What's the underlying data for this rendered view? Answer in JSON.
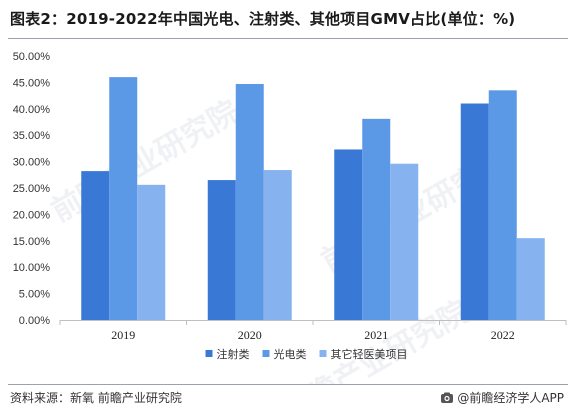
{
  "title": "图表2：2019-2022年中国光电、注射类、其他项目GMV占比(单位：%)",
  "source": "资料来源：新氧 前瞻产业研究院",
  "brand": "@前瞻经济学人APP",
  "brand_icon": "camera-logo-icon",
  "watermark": "前瞻产业研究院",
  "colors": {
    "series": [
      "#3a78d6",
      "#5b98e6",
      "#86b3ef"
    ],
    "axis": "#bfbfbf"
  },
  "chart_data": {
    "type": "bar",
    "title": "",
    "xlabel": "",
    "ylabel": "",
    "categories": [
      "2019",
      "2020",
      "2021",
      "2022"
    ],
    "series": [
      {
        "name": "注射类",
        "values": [
          28.2,
          26.5,
          32.3,
          41.0
        ]
      },
      {
        "name": "光电类",
        "values": [
          46.0,
          44.7,
          38.1,
          43.5
        ]
      },
      {
        "name": "其它轻医美项目",
        "values": [
          25.6,
          28.4,
          29.6,
          15.5
        ]
      }
    ],
    "ylim": [
      0,
      50
    ],
    "yticks": [
      "0.00%",
      "5.00%",
      "10.00%",
      "15.00%",
      "20.00%",
      "25.00%",
      "30.00%",
      "35.00%",
      "40.00%",
      "45.00%",
      "50.00%"
    ],
    "grid": false,
    "legend": "bottom-center"
  }
}
